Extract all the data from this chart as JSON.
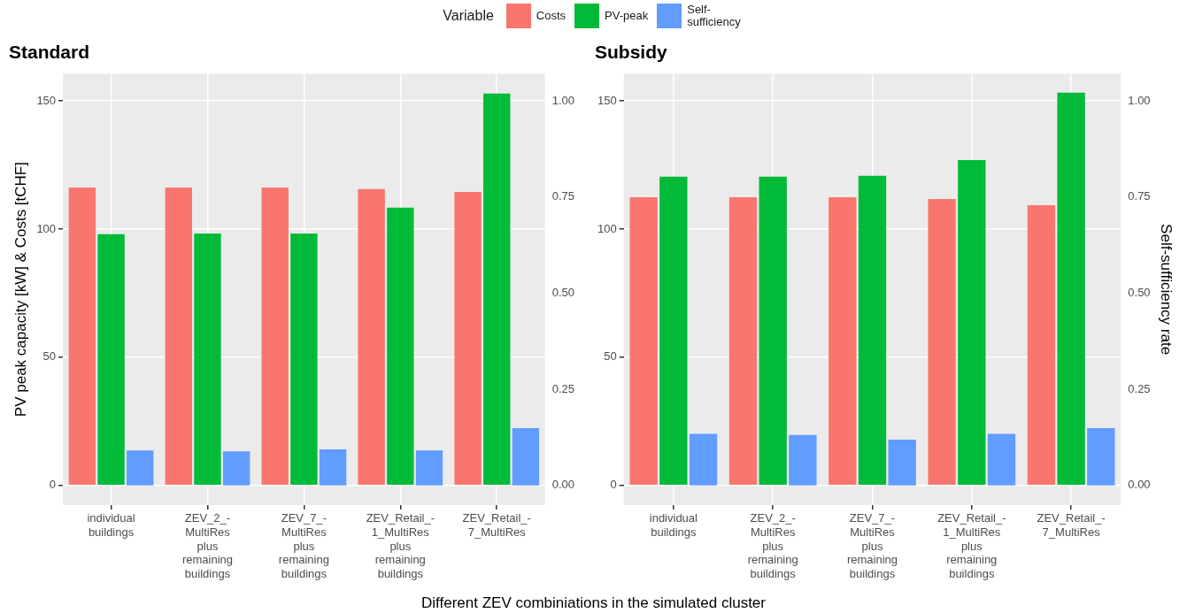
{
  "chart_data": [
    {
      "type": "bar",
      "title": "Standard",
      "xlabel": "Different ZEV combiniations in the simulated cluster",
      "ylabel": "PV peak capacity [kW] & Costs [tCHF]",
      "legend_title": "Variable",
      "legend": "top",
      "grid": true,
      "categories": [
        "individual\nbuildings",
        "ZEV_2_-\nMultiRes\nplus\nremaining\nbuildings",
        "ZEV_7_-\nMultiRes\nplus\nremaining\nbuildings",
        "ZEV_Retail_-\n1_MultiRes\nplus\nremaining\nbuildings",
        "ZEV_Retail_-\n7_MultiRes"
      ],
      "series": [
        {
          "name": "Costs",
          "color": "#f8766d",
          "values": [
            116.2,
            116.2,
            116.2,
            115.6,
            114.5
          ]
        },
        {
          "name": "PV-peak",
          "color": "#00ba38",
          "values": [
            98.0,
            98.3,
            98.3,
            108.4,
            152.9
          ]
        },
        {
          "name": "Self-\nsufficiency",
          "color": "#619cff",
          "axis": "y2",
          "values": [
            0.091,
            0.089,
            0.094,
            0.091,
            0.149
          ]
        }
      ],
      "ylim": [
        -7.65,
        160.65
      ],
      "yticks": [
        0,
        50,
        100,
        150
      ],
      "y2lim": [
        -0.051,
        1.071
      ],
      "y2ticks": [
        {
          "value": 0,
          "label": "0.00"
        },
        {
          "value": 0.25,
          "label": "0.25"
        },
        {
          "value": 0.5,
          "label": "0.50"
        },
        {
          "value": 0.75,
          "label": "0.75"
        },
        {
          "value": 1,
          "label": "1.00"
        }
      ]
    },
    {
      "type": "bar",
      "title": "Subsidy",
      "y2label": "Self-sufficiency rate",
      "grid": true,
      "categories": [
        "individual\nbuildings",
        "ZEV_2_-\nMultiRes\nplus\nremaining\nbuildings",
        "ZEV_7_-\nMultiRes\nplus\nremaining\nbuildings",
        "ZEV_Retail_-\n1_MultiRes\nplus\nremaining\nbuildings",
        "ZEV_Retail_-\n7_MultiRes"
      ],
      "series": [
        {
          "color": "#f8766d",
          "values": [
            112.4,
            112.4,
            112.4,
            111.7,
            109.3
          ]
        },
        {
          "color": "#00ba38",
          "values": [
            120.4,
            120.4,
            120.8,
            126.9,
            153.2
          ]
        },
        {
          "color": "#619cff",
          "axis": "y2",
          "values": [
            0.134,
            0.131,
            0.119,
            0.134,
            0.149
          ]
        }
      ],
      "ylim": [
        -7.65,
        160.65
      ],
      "yticks": [
        0,
        50,
        100,
        150
      ],
      "y2lim": [
        -0.051,
        1.071
      ],
      "y2ticks": [
        {
          "value": 0,
          "label": "0.00"
        },
        {
          "value": 0.25,
          "label": "0.25"
        },
        {
          "value": 0.5,
          "label": "0.50"
        },
        {
          "value": 0.75,
          "label": "0.75"
        },
        {
          "value": 1,
          "label": "1.00"
        }
      ]
    }
  ]
}
